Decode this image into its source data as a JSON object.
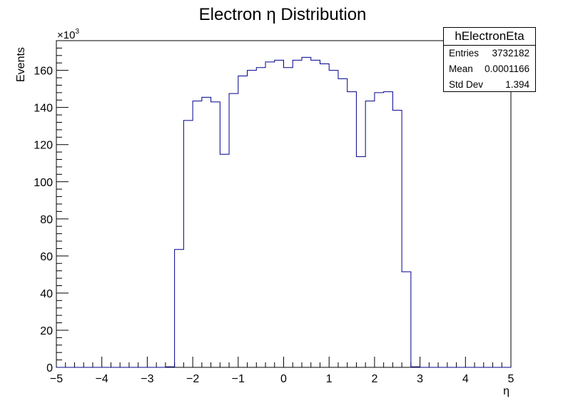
{
  "chart_data": {
    "type": "histogram",
    "title": "Electron η Distribution",
    "xlabel": "η",
    "ylabel": "Events",
    "y_multiplier_label": "×10",
    "y_multiplier_exp": "3",
    "xlim": [
      -5,
      5
    ],
    "ylim": [
      0,
      176
    ],
    "x_ticks": [
      -5,
      -4,
      -3,
      -2,
      -1,
      0,
      1,
      2,
      3,
      4,
      5
    ],
    "x_tick_labels": [
      "−5",
      "−4",
      "−3",
      "−2",
      "−1",
      "0",
      "1",
      "2",
      "3",
      "4",
      "5"
    ],
    "y_ticks": [
      0,
      20,
      40,
      60,
      80,
      100,
      120,
      140,
      160
    ],
    "y_tick_labels": [
      "0",
      "20",
      "40",
      "60",
      "80",
      "100",
      "120",
      "140",
      "160"
    ],
    "bin_edges_start": -5,
    "bin_width": 0.2,
    "values": [
      0,
      0,
      0,
      0,
      0,
      0,
      0,
      0,
      0,
      0,
      0,
      0,
      0.3,
      63.5,
      133,
      143.5,
      145.5,
      143,
      114.8,
      147.5,
      157,
      160,
      161.5,
      164.5,
      165.5,
      161.5,
      165.5,
      167,
      165.5,
      163.5,
      160,
      155.5,
      148.5,
      113.5,
      143.5,
      148,
      148.5,
      138.5,
      51.5,
      0.3,
      0,
      0,
      0,
      0,
      0,
      0,
      0,
      0,
      0,
      0
    ],
    "line_color": "#00008b",
    "grid": false,
    "legend": "none"
  },
  "stats_box": {
    "name": "hElectronEta",
    "rows": [
      {
        "label": "Entries",
        "value": "3732182"
      },
      {
        "label": "Mean",
        "value": "0.0001166"
      },
      {
        "label": "Std Dev",
        "value": "1.394"
      }
    ]
  }
}
